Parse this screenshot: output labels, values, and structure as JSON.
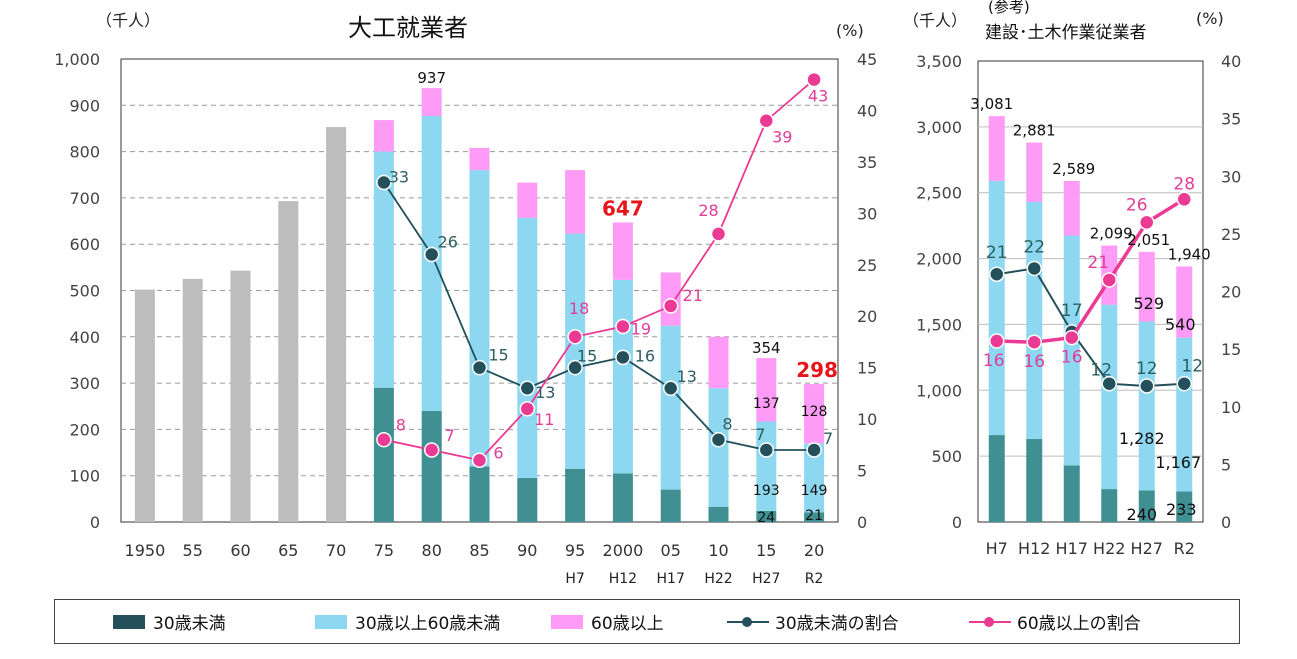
{
  "colors": {
    "under30": "#3f8f93",
    "mid": "#8dd8f0",
    "over60": "#fd9bf6",
    "gray": "#bdbdbd",
    "line_under30": "#23505a",
    "line_over60": "#ea3a93",
    "red_label": "#e8141a",
    "teal_label": "#2b5f62",
    "pink_label": "#e23d97"
  },
  "legend": {
    "under30": "30歳未満",
    "mid": "30歳以上60歳未満",
    "over60": "60歳以上",
    "under30_ratio": "30歳未満の割合",
    "over60_ratio": "60歳以上の割合"
  },
  "chart_data": [
    {
      "type": "bar",
      "title": "大工就業者",
      "ylabel": "（千人）",
      "y2label": "(%)",
      "ylim": [
        0,
        1000
      ],
      "y2lim": [
        0,
        45
      ],
      "yticks": [
        "0",
        "100",
        "200",
        "300",
        "400",
        "500",
        "600",
        "700",
        "800",
        "900",
        "1,000"
      ],
      "y2ticks": [
        "0",
        "5",
        "10",
        "15",
        "20",
        "25",
        "30",
        "35",
        "40",
        "45"
      ],
      "categories": [
        "1950",
        "55",
        "60",
        "65",
        "70",
        "75",
        "80",
        "85",
        "90",
        "95",
        "2000",
        "05",
        "10",
        "15",
        "20"
      ],
      "sub_categories": [
        "",
        "",
        "",
        "",
        "",
        "",
        "",
        "",
        "",
        "H7",
        "H12",
        "H17",
        "H22",
        "H27",
        "R2"
      ],
      "total_only": [
        502,
        525,
        543,
        693,
        853,
        null,
        null,
        null,
        null,
        null,
        null,
        null,
        null,
        null,
        null
      ],
      "series": [
        {
          "name": "30歳未満",
          "values": [
            null,
            null,
            null,
            null,
            null,
            290,
            240,
            120,
            95,
            115,
            105,
            70,
            33,
            24,
            21
          ]
        },
        {
          "name": "30歳以上60歳未満",
          "values": [
            null,
            null,
            null,
            null,
            null,
            510,
            637,
            640,
            562,
            508,
            418,
            354,
            256,
            193,
            149
          ]
        },
        {
          "name": "60歳以上",
          "values": [
            null,
            null,
            null,
            null,
            null,
            68,
            60,
            48,
            76,
            137,
            124,
            115,
            111,
            137,
            128
          ]
        }
      ],
      "lines": [
        {
          "name": "30歳未満の割合",
          "values": [
            null,
            null,
            null,
            null,
            null,
            33,
            26,
            15,
            13,
            15,
            16,
            13,
            8,
            7,
            7
          ]
        },
        {
          "name": "60歳以上の割合",
          "values": [
            null,
            null,
            null,
            null,
            null,
            8,
            7,
            6,
            11,
            18,
            19,
            21,
            28,
            39,
            43
          ]
        }
      ],
      "line_labels": {
        "under30": [
          "",
          "",
          "",
          "",
          "",
          "33",
          "26",
          "15",
          "13",
          "15",
          "16",
          "13",
          "8",
          "7",
          "7"
        ],
        "over60": [
          "",
          "",
          "",
          "",
          "",
          "8",
          "7",
          "6",
          "11",
          "18",
          "19",
          "21",
          "28",
          "39",
          "43"
        ]
      },
      "value_labels": {
        "total_80": "937",
        "total_2000": "647",
        "total_15": "354",
        "total_20": "298",
        "over60_15": "137",
        "over60_20": "128",
        "mid_15": "193",
        "mid_20": "149",
        "under30_15": "24",
        "under30_20": "21"
      }
    },
    {
      "type": "bar",
      "title_top": "(参考)",
      "title": "建設･土木作業従業者",
      "ylabel": "（千人）",
      "y2label": "(%)",
      "ylim": [
        0,
        3500
      ],
      "y2lim": [
        0,
        40
      ],
      "yticks": [
        "0",
        "500",
        "1,000",
        "1,500",
        "2,000",
        "2,500",
        "3,000",
        "3,500"
      ],
      "y2ticks": [
        "0",
        "5",
        "10",
        "15",
        "20",
        "25",
        "30",
        "35",
        "40"
      ],
      "categories": [
        "H7",
        "H12",
        "H17",
        "H22",
        "H27",
        "R2"
      ],
      "series": [
        {
          "name": "30歳未満",
          "values": [
            660,
            630,
            430,
            250,
            240,
            233
          ]
        },
        {
          "name": "30歳以上60歳未満",
          "values": [
            1930,
            1800,
            1745,
            1400,
            1282,
            1167
          ]
        },
        {
          "name": "60歳以上",
          "values": [
            491,
            451,
            414,
            449,
            529,
            540
          ]
        }
      ],
      "lines": [
        {
          "name": "30歳未満の割合",
          "values": [
            21.5,
            22,
            16.5,
            12,
            11.8,
            12
          ]
        },
        {
          "name": "60歳以上の割合",
          "values": [
            15.7,
            15.6,
            16,
            21,
            26,
            28
          ]
        }
      ],
      "line_labels": {
        "under30": [
          "21",
          "22",
          "17",
          "12",
          "12",
          "12"
        ],
        "over60": [
          "16",
          "16",
          "16",
          "21",
          "26",
          "28"
        ]
      },
      "totals": [
        "3,081",
        "2,881",
        "2,589",
        "2,099",
        "2,051",
        "1,940"
      ],
      "value_labels": {
        "over60_H27": "529",
        "over60_R2": "540",
        "mid_H27": "1,282",
        "mid_R2": "1,167",
        "under30_H27": "240",
        "under30_R2": "233"
      }
    }
  ]
}
